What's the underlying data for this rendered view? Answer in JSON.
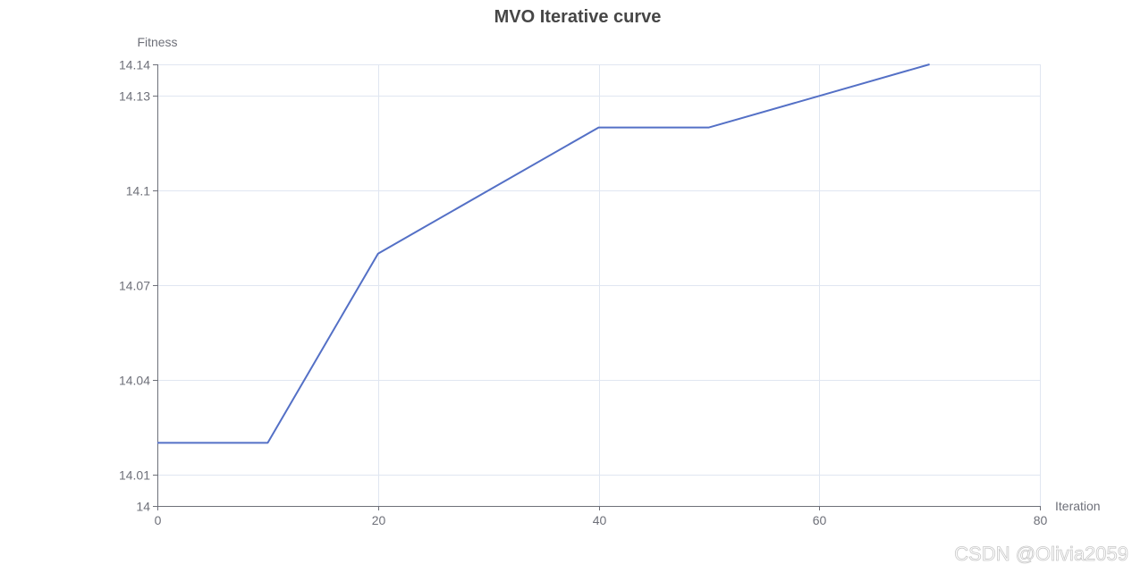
{
  "chart_data": {
    "type": "line",
    "title": "MVO Iterative curve",
    "xlabel": "Iteration",
    "ylabel": "Fitness",
    "xlim": [
      0,
      80
    ],
    "ylim": [
      14,
      14.14
    ],
    "x_ticks": [
      0,
      20,
      40,
      60,
      80
    ],
    "y_ticks": [
      14,
      14.01,
      14.04,
      14.07,
      14.1,
      14.13,
      14.14
    ],
    "x_tick_labels": [
      "0",
      "20",
      "40",
      "60",
      "80"
    ],
    "y_tick_labels": [
      "14",
      "14.01",
      "14.04",
      "14.07",
      "14.1",
      "14.13",
      "14.14"
    ],
    "grid": true,
    "series": [
      {
        "color": "#5470c6",
        "x": [
          0,
          10,
          20,
          30,
          40,
          50,
          60,
          70
        ],
        "y": [
          14.02,
          14.02,
          14.08,
          14.1,
          14.12,
          14.12,
          14.13,
          14.14
        ]
      }
    ]
  },
  "watermark": "CSDN @Olivia2059"
}
